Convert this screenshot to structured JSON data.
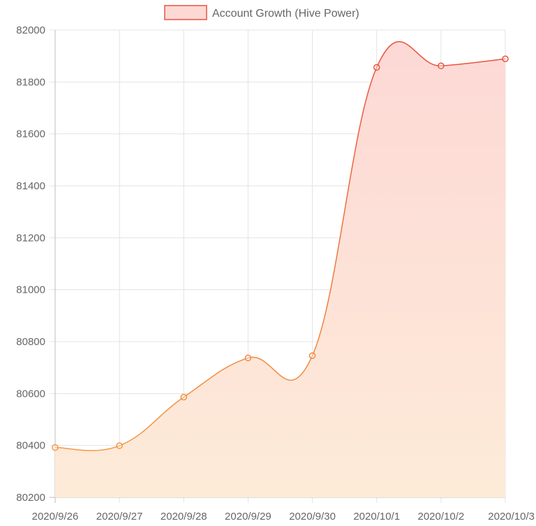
{
  "chart_data": {
    "type": "area",
    "categories": [
      "2020/9/26",
      "2020/9/27",
      "2020/9/28",
      "2020/9/29",
      "2020/9/30",
      "2020/10/1",
      "2020/10/2",
      "2020/10/3"
    ],
    "series": [
      {
        "name": "Account Growth (Hive Power)",
        "values": [
          80392,
          80399,
          80586,
          80737,
          80746,
          81856,
          81862,
          81889
        ]
      }
    ],
    "ylim": [
      80200,
      82000
    ],
    "yticks": [
      "80200",
      "80400",
      "80600",
      "80800",
      "81000",
      "81200",
      "81400",
      "81600",
      "81800",
      "82000"
    ],
    "grid": true,
    "legend": "top-center",
    "colors": {
      "line_low": "#f5a142",
      "line_high": "#e8543f",
      "fill_low": "#fdebd8",
      "fill_high": "#fdd9d6",
      "legend_fill": "#fdd9d6",
      "legend_border": "#e8543f"
    }
  }
}
